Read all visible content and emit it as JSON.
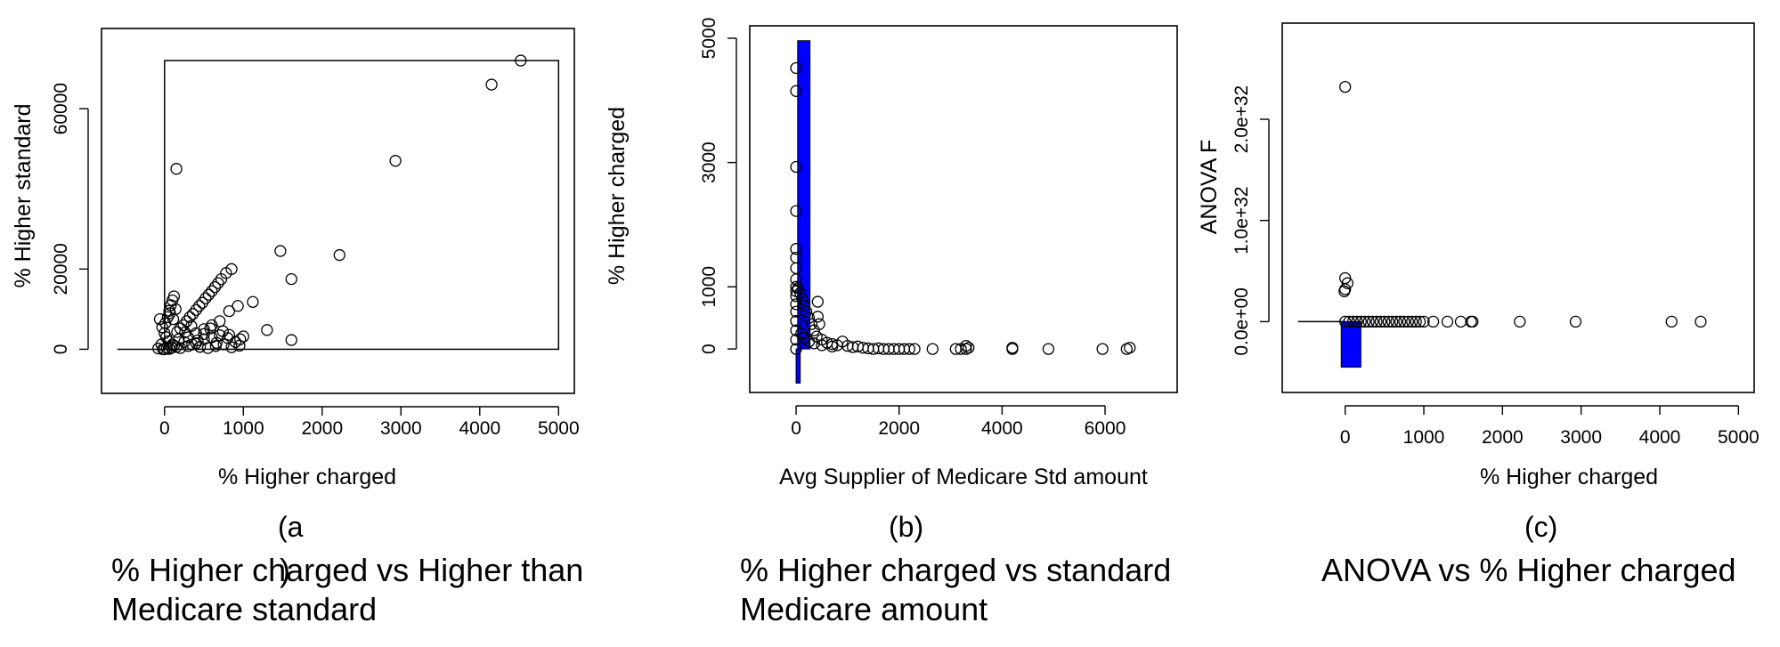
{
  "chart_data": [
    {
      "type": "scatter",
      "panel_label": "(a",
      "caption_line1": "% Higher charged vs Higher than",
      "caption_line2": "Medicare standard",
      "caption_tail": ")",
      "xlabel": "% Higher charged",
      "ylabel": "% Higher standard",
      "xlim": [
        -800,
        5200
      ],
      "ylim": [
        -11000,
        80000
      ],
      "xticks": [
        0,
        1000,
        2000,
        3000,
        4000,
        5000
      ],
      "yticks": [
        0,
        20000,
        60000
      ],
      "ytick_labels": [
        "0",
        "20000",
        "60000"
      ],
      "overlay_rect": [
        0,
        0,
        5000,
        72000
      ],
      "baseline": [
        -600,
        0,
        0,
        0
      ],
      "points": [
        [
          4520,
          72000
        ],
        [
          4150,
          66000
        ],
        [
          2930,
          47000
        ],
        [
          150,
          45000
        ],
        [
          2220,
          23500
        ],
        [
          1470,
          24500
        ],
        [
          1610,
          17500
        ],
        [
          1610,
          2300
        ],
        [
          1300,
          4800
        ],
        [
          1120,
          11800
        ],
        [
          1000,
          3200
        ],
        [
          960,
          2500
        ],
        [
          930,
          10800
        ],
        [
          850,
          20000
        ],
        [
          820,
          9500
        ],
        [
          780,
          19000
        ],
        [
          720,
          17500
        ],
        [
          680,
          16500
        ],
        [
          640,
          15500
        ],
        [
          600,
          14500
        ],
        [
          560,
          13600
        ],
        [
          520,
          12700
        ],
        [
          480,
          11600
        ],
        [
          440,
          10800
        ],
        [
          400,
          9800
        ],
        [
          360,
          8800
        ],
        [
          320,
          8000
        ],
        [
          280,
          7000
        ],
        [
          240,
          6000
        ],
        [
          200,
          5200
        ],
        [
          160,
          4300
        ],
        [
          120,
          13200
        ],
        [
          100,
          12200
        ],
        [
          80,
          11000
        ],
        [
          60,
          9600
        ],
        [
          40,
          8000
        ],
        [
          -60,
          7500
        ],
        [
          -30,
          5500
        ],
        [
          0,
          4000
        ],
        [
          20,
          3000
        ],
        [
          50,
          2000
        ],
        [
          100,
          1200
        ],
        [
          150,
          600
        ],
        [
          200,
          300
        ],
        [
          300,
          800
        ],
        [
          400,
          1500
        ],
        [
          500,
          2500
        ],
        [
          600,
          3000
        ],
        [
          700,
          3500
        ],
        [
          800,
          2800
        ],
        [
          900,
          1800
        ],
        [
          700,
          7000
        ],
        [
          600,
          6000
        ],
        [
          500,
          5000
        ],
        [
          400,
          4000
        ],
        [
          300,
          3000
        ],
        [
          -20,
          0
        ],
        [
          0,
          0
        ],
        [
          30,
          200
        ],
        [
          60,
          100
        ],
        [
          90,
          400
        ],
        [
          120,
          900
        ],
        [
          250,
          1800
        ],
        [
          350,
          1200
        ],
        [
          450,
          600
        ],
        [
          550,
          300
        ],
        [
          650,
          800
        ],
        [
          750,
          1200
        ],
        [
          850,
          500
        ],
        [
          950,
          900
        ],
        [
          180,
          2500
        ],
        [
          260,
          4200
        ],
        [
          340,
          5800
        ],
        [
          420,
          2200
        ],
        [
          500,
          3800
        ],
        [
          580,
          5200
        ],
        [
          660,
          1600
        ],
        [
          740,
          4500
        ],
        [
          820,
          3600
        ],
        [
          -80,
          200
        ],
        [
          -40,
          1200
        ],
        [
          10,
          6500
        ],
        [
          70,
          9000
        ],
        [
          110,
          7500
        ],
        [
          140,
          10000
        ]
      ]
    },
    {
      "type": "scatter",
      "panel_label": "(b)",
      "caption_line1": "% Higher charged vs standard",
      "caption_line2": "Medicare amount",
      "xlabel": "Avg Supplier of Medicare Std amount",
      "ylabel": "% Higher charged",
      "xlim": [
        -900,
        7400
      ],
      "ylim": [
        -700,
        5200
      ],
      "xticks": [
        0,
        2000,
        4000,
        6000
      ],
      "yticks": [
        0,
        1000,
        3000,
        5000
      ],
      "ytick_labels": [
        "0",
        "1000",
        "3000",
        "5000"
      ],
      "bar_color": "#0000ff",
      "bars": [
        [
          0,
          80,
          -550,
          0
        ],
        [
          30,
          270,
          0,
          4960
        ]
      ],
      "points": [
        [
          0,
          4520
        ],
        [
          0,
          4150
        ],
        [
          0,
          2930
        ],
        [
          0,
          2220
        ],
        [
          0,
          1610
        ],
        [
          0,
          1470
        ],
        [
          0,
          1300
        ],
        [
          0,
          1120
        ],
        [
          0,
          1000
        ],
        [
          0,
          930
        ],
        [
          0,
          850
        ],
        [
          0,
          720
        ],
        [
          0,
          600
        ],
        [
          0,
          450
        ],
        [
          0,
          300
        ],
        [
          0,
          150
        ],
        [
          0,
          0
        ],
        [
          40,
          980
        ],
        [
          80,
          900
        ],
        [
          120,
          800
        ],
        [
          160,
          700
        ],
        [
          200,
          600
        ],
        [
          250,
          500
        ],
        [
          300,
          400
        ],
        [
          350,
          300
        ],
        [
          400,
          200
        ],
        [
          420,
          520
        ],
        [
          450,
          400
        ],
        [
          420,
          760
        ],
        [
          500,
          150
        ],
        [
          600,
          100
        ],
        [
          700,
          80
        ],
        [
          800,
          60
        ],
        [
          900,
          120
        ],
        [
          1000,
          50
        ],
        [
          1100,
          30
        ],
        [
          1200,
          40
        ],
        [
          1300,
          20
        ],
        [
          1400,
          10
        ],
        [
          1500,
          0
        ],
        [
          1600,
          10
        ],
        [
          1700,
          0
        ],
        [
          1800,
          0
        ],
        [
          1900,
          0
        ],
        [
          2000,
          0
        ],
        [
          2100,
          0
        ],
        [
          2200,
          0
        ],
        [
          2300,
          0
        ],
        [
          2650,
          0
        ],
        [
          3100,
          0
        ],
        [
          3200,
          0
        ],
        [
          3300,
          50
        ],
        [
          3350,
          20
        ],
        [
          3300,
          0
        ],
        [
          4200,
          0
        ],
        [
          4200,
          20
        ],
        [
          4900,
          0
        ],
        [
          5950,
          0
        ],
        [
          6420,
          0
        ],
        [
          6480,
          20
        ],
        [
          100,
          250
        ],
        [
          150,
          180
        ],
        [
          250,
          120
        ],
        [
          350,
          90
        ],
        [
          500,
          60
        ],
        [
          700,
          40
        ]
      ]
    },
    {
      "type": "scatter",
      "panel_label": "(c)",
      "caption_line1": "ANOVA vs % Higher charged",
      "xlabel": "% Higher charged",
      "ylabel": "ANOVA F",
      "xlim": [
        -800,
        5200
      ],
      "ylim": [
        -7e+31,
        2.95e+32
      ],
      "xticks": [
        0,
        1000,
        2000,
        3000,
        4000,
        5000
      ],
      "yticks": [
        0,
        1e+32,
        2e+32
      ],
      "ytick_labels": [
        "0.0e+00",
        "1.0e+32",
        "2.0e+32"
      ],
      "bar_color": "#0000ff",
      "bar": [
        -50,
        200,
        -4.5e+31,
        0
      ],
      "baseline": [
        -600,
        0,
        0,
        0
      ],
      "points": [
        [
          0,
          2.32e+32
        ],
        [
          0,
          4.3e+31
        ],
        [
          30,
          3.8e+31
        ],
        [
          0,
          3.2e+31
        ],
        [
          -10,
          3e+31
        ],
        [
          0,
          0
        ],
        [
          50,
          0
        ],
        [
          100,
          0
        ],
        [
          150,
          0
        ],
        [
          200,
          0
        ],
        [
          250,
          0
        ],
        [
          300,
          0
        ],
        [
          350,
          0
        ],
        [
          400,
          0
        ],
        [
          450,
          0
        ],
        [
          500,
          0
        ],
        [
          550,
          0
        ],
        [
          600,
          0
        ],
        [
          650,
          0
        ],
        [
          700,
          0
        ],
        [
          750,
          0
        ],
        [
          800,
          0
        ],
        [
          850,
          0
        ],
        [
          900,
          0
        ],
        [
          950,
          0
        ],
        [
          1000,
          0
        ],
        [
          1120,
          0
        ],
        [
          1300,
          0
        ],
        [
          1470,
          0
        ],
        [
          1600,
          0
        ],
        [
          1620,
          0
        ],
        [
          2220,
          0
        ],
        [
          2930,
          0
        ],
        [
          4150,
          0
        ],
        [
          4520,
          0
        ]
      ]
    }
  ]
}
